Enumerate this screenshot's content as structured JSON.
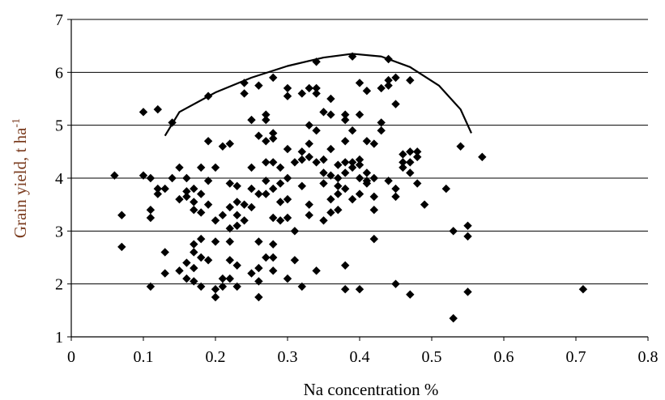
{
  "chart_data": {
    "type": "scatter",
    "xlabel": "Na concentration  %",
    "ylabel": {
      "main": "Grain yield,  t ha",
      "sup": "-1"
    },
    "xlim": [
      0,
      0.8
    ],
    "ylim": [
      1,
      7
    ],
    "xticks": [
      "0",
      "0.1",
      "0.2",
      "0.3",
      "0.4",
      "0.5",
      "0.6",
      "0.7",
      "0.8"
    ],
    "yticks": [
      "1",
      "2",
      "3",
      "4",
      "5",
      "6",
      "7"
    ],
    "grid": "horizontal",
    "colors": {
      "marker": "#000000",
      "ylabel": "#7a3b1e",
      "xlabel": "#000000"
    },
    "series": [
      {
        "type": "scatter",
        "marker": "diamond",
        "x": [
          0.06,
          0.07,
          0.07,
          0.1,
          0.1,
          0.11,
          0.11,
          0.11,
          0.11,
          0.12,
          0.12,
          0.12,
          0.13,
          0.13,
          0.13,
          0.14,
          0.14,
          0.15,
          0.15,
          0.15,
          0.16,
          0.16,
          0.16,
          0.16,
          0.16,
          0.17,
          0.17,
          0.17,
          0.17,
          0.17,
          0.17,
          0.17,
          0.18,
          0.18,
          0.18,
          0.18,
          0.18,
          0.18,
          0.19,
          0.19,
          0.19,
          0.19,
          0.19,
          0.2,
          0.2,
          0.2,
          0.2,
          0.2,
          0.21,
          0.21,
          0.21,
          0.21,
          0.22,
          0.22,
          0.22,
          0.22,
          0.22,
          0.22,
          0.22,
          0.23,
          0.23,
          0.23,
          0.23,
          0.23,
          0.23,
          0.24,
          0.24,
          0.24,
          0.24,
          0.25,
          0.25,
          0.25,
          0.25,
          0.25,
          0.26,
          0.26,
          0.26,
          0.26,
          0.26,
          0.26,
          0.26,
          0.27,
          0.27,
          0.27,
          0.27,
          0.27,
          0.27,
          0.27,
          0.28,
          0.28,
          0.28,
          0.28,
          0.28,
          0.28,
          0.28,
          0.28,
          0.28,
          0.29,
          0.29,
          0.29,
          0.29,
          0.3,
          0.3,
          0.3,
          0.3,
          0.3,
          0.3,
          0.3,
          0.31,
          0.31,
          0.31,
          0.32,
          0.32,
          0.32,
          0.32,
          0.32,
          0.33,
          0.33,
          0.33,
          0.33,
          0.33,
          0.33,
          0.34,
          0.34,
          0.34,
          0.34,
          0.34,
          0.34,
          0.35,
          0.35,
          0.35,
          0.35,
          0.35,
          0.36,
          0.36,
          0.36,
          0.36,
          0.36,
          0.36,
          0.37,
          0.37,
          0.37,
          0.37,
          0.37,
          0.38,
          0.38,
          0.38,
          0.38,
          0.38,
          0.38,
          0.38,
          0.38,
          0.39,
          0.39,
          0.39,
          0.39,
          0.39,
          0.4,
          0.4,
          0.4,
          0.4,
          0.4,
          0.4,
          0.4,
          0.41,
          0.41,
          0.41,
          0.41,
          0.41,
          0.42,
          0.42,
          0.42,
          0.42,
          0.42,
          0.43,
          0.43,
          0.43,
          0.44,
          0.44,
          0.44,
          0.44,
          0.45,
          0.45,
          0.45,
          0.45,
          0.45,
          0.46,
          0.46,
          0.46,
          0.47,
          0.47,
          0.47,
          0.47,
          0.47,
          0.48,
          0.48,
          0.48,
          0.49,
          0.52,
          0.53,
          0.53,
          0.54,
          0.55,
          0.55,
          0.55,
          0.57,
          0.71
        ],
        "y": [
          4.05,
          3.3,
          2.7,
          5.25,
          4.05,
          4.0,
          3.4,
          3.25,
          1.95,
          5.3,
          3.8,
          3.7,
          3.8,
          2.6,
          2.2,
          5.05,
          4.0,
          4.2,
          3.6,
          2.25,
          4.0,
          3.75,
          3.65,
          2.4,
          2.1,
          3.8,
          3.55,
          3.4,
          2.75,
          2.6,
          2.3,
          2.05,
          4.2,
          3.7,
          3.35,
          2.85,
          2.5,
          1.95,
          5.55,
          4.7,
          3.95,
          3.5,
          2.45,
          4.2,
          3.2,
          2.8,
          1.9,
          1.75,
          4.6,
          3.3,
          2.1,
          1.95,
          4.65,
          3.9,
          3.45,
          3.05,
          2.8,
          2.45,
          2.1,
          3.85,
          3.55,
          3.3,
          3.1,
          2.35,
          1.95,
          5.8,
          5.6,
          3.5,
          3.2,
          5.1,
          4.2,
          3.8,
          3.45,
          2.2,
          5.75,
          4.8,
          3.7,
          2.8,
          2.3,
          2.05,
          1.75,
          5.2,
          5.1,
          4.7,
          4.3,
          3.95,
          3.7,
          2.5,
          5.9,
          4.85,
          4.75,
          4.3,
          3.8,
          3.25,
          2.75,
          2.5,
          2.25,
          4.2,
          3.9,
          3.55,
          3.2,
          5.7,
          5.55,
          4.55,
          4.0,
          3.6,
          3.25,
          2.1,
          4.3,
          3.0,
          2.45,
          5.6,
          4.5,
          4.35,
          3.85,
          1.95,
          5.7,
          5.0,
          4.65,
          4.4,
          3.5,
          3.3,
          6.2,
          5.7,
          5.6,
          4.9,
          4.3,
          2.25,
          5.25,
          4.35,
          4.1,
          3.9,
          3.2,
          5.5,
          5.2,
          4.55,
          4.05,
          3.6,
          3.35,
          4.25,
          4.0,
          3.85,
          3.7,
          3.4,
          5.2,
          5.1,
          4.7,
          4.3,
          4.1,
          3.8,
          2.35,
          1.9,
          6.3,
          4.9,
          4.3,
          4.2,
          3.6,
          5.8,
          5.2,
          4.35,
          4.25,
          4.0,
          3.7,
          1.9,
          5.65,
          4.7,
          4.1,
          3.95,
          3.9,
          4.65,
          4.0,
          3.65,
          3.4,
          2.85,
          5.7,
          5.05,
          4.9,
          6.25,
          5.85,
          5.75,
          3.95,
          5.9,
          5.4,
          3.8,
          3.65,
          2.0,
          4.45,
          4.3,
          4.2,
          5.85,
          4.5,
          4.3,
          4.1,
          1.8,
          4.5,
          4.4,
          3.9,
          3.5,
          3.8,
          3.0,
          1.35,
          4.6,
          3.1,
          2.9,
          1.85,
          4.4,
          1.9
        ]
      },
      {
        "type": "line",
        "x": [
          0.13,
          0.15,
          0.2,
          0.25,
          0.3,
          0.35,
          0.39,
          0.43,
          0.47,
          0.51,
          0.54,
          0.555
        ],
        "y": [
          4.8,
          5.25,
          5.62,
          5.9,
          6.12,
          6.28,
          6.35,
          6.3,
          6.1,
          5.75,
          5.3,
          4.85
        ]
      }
    ]
  }
}
